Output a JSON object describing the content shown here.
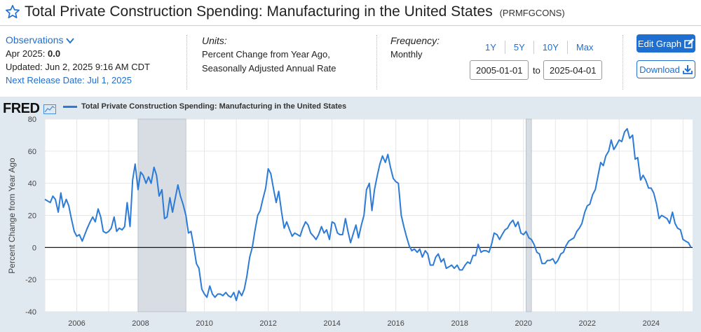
{
  "header": {
    "title": "Total Private Construction Spending: Manufacturing in the United States",
    "series_id": "(PRMFGCONS)"
  },
  "observations": {
    "link_label": "Observations",
    "date_label": "Apr 2025:",
    "value": "0.0",
    "updated": "Updated: Jun 2, 2025 9:16 AM CDT",
    "next_release": "Next Release Date: Jul 1, 2025"
  },
  "units": {
    "heading": "Units:",
    "line1": "Percent Change from Year Ago,",
    "line2": "Seasonally Adjusted Annual Rate"
  },
  "frequency": {
    "heading": "Frequency:",
    "value": "Monthly"
  },
  "range_buttons": [
    "1Y",
    "5Y",
    "10Y",
    "Max"
  ],
  "date_range": {
    "start": "2005-01-01",
    "to_label": "to",
    "end": "2025-04-01"
  },
  "actions": {
    "edit_graph": "Edit Graph",
    "download": "Download"
  },
  "logo": "FRED",
  "colors": {
    "accent": "#1f6fd1",
    "series": "#2c7bd6",
    "plot_bg": "#ffffff",
    "panel_bg": "#e1e9f0",
    "recession": "#d8dde3"
  },
  "chart_data": {
    "type": "line",
    "title": "Total Private Construction Spending: Manufacturing in the United States",
    "ylabel": "Percent Change from Year Ago",
    "xlabel": "",
    "ylim": [
      -40,
      80
    ],
    "xlim": [
      2005.0,
      2025.3
    ],
    "y_ticks": [
      80,
      60,
      40,
      20,
      0,
      -20,
      -40
    ],
    "x_ticks": [
      2006,
      2008,
      2010,
      2012,
      2014,
      2016,
      2018,
      2020,
      2022,
      2024
    ],
    "recessions": [
      [
        2007.92,
        2009.42
      ],
      [
        2020.08,
        2020.25
      ]
    ],
    "series": [
      {
        "name": "Total Private Construction Spending: Manufacturing in the United States",
        "points": [
          [
            2005.0,
            30
          ],
          [
            2005.17,
            28
          ],
          [
            2005.25,
            32
          ],
          [
            2005.33,
            30
          ],
          [
            2005.42,
            22
          ],
          [
            2005.5,
            34
          ],
          [
            2005.58,
            25
          ],
          [
            2005.67,
            30
          ],
          [
            2005.75,
            26
          ],
          [
            2005.83,
            18
          ],
          [
            2005.92,
            10
          ],
          [
            2006.0,
            7
          ],
          [
            2006.08,
            8
          ],
          [
            2006.17,
            4
          ],
          [
            2006.25,
            8
          ],
          [
            2006.33,
            12
          ],
          [
            2006.42,
            16
          ],
          [
            2006.5,
            19
          ],
          [
            2006.58,
            16
          ],
          [
            2006.67,
            24
          ],
          [
            2006.75,
            19
          ],
          [
            2006.83,
            10
          ],
          [
            2006.92,
            9
          ],
          [
            2007.0,
            10
          ],
          [
            2007.08,
            12
          ],
          [
            2007.17,
            19
          ],
          [
            2007.25,
            10
          ],
          [
            2007.33,
            12
          ],
          [
            2007.42,
            11
          ],
          [
            2007.5,
            13
          ],
          [
            2007.58,
            28
          ],
          [
            2007.67,
            13
          ],
          [
            2007.75,
            42
          ],
          [
            2007.83,
            52
          ],
          [
            2007.92,
            36
          ],
          [
            2008.0,
            47
          ],
          [
            2008.08,
            45
          ],
          [
            2008.17,
            40
          ],
          [
            2008.25,
            44
          ],
          [
            2008.33,
            40
          ],
          [
            2008.42,
            50
          ],
          [
            2008.5,
            45
          ],
          [
            2008.58,
            32
          ],
          [
            2008.67,
            36
          ],
          [
            2008.75,
            18
          ],
          [
            2008.83,
            19
          ],
          [
            2008.92,
            31
          ],
          [
            2009.0,
            22
          ],
          [
            2009.08,
            30
          ],
          [
            2009.17,
            39
          ],
          [
            2009.25,
            32
          ],
          [
            2009.33,
            27
          ],
          [
            2009.42,
            20
          ],
          [
            2009.5,
            9
          ],
          [
            2009.58,
            10
          ],
          [
            2009.67,
            0
          ],
          [
            2009.75,
            -10
          ],
          [
            2009.83,
            -13
          ],
          [
            2009.92,
            -26
          ],
          [
            2010.0,
            -29
          ],
          [
            2010.08,
            -31
          ],
          [
            2010.17,
            -24
          ],
          [
            2010.25,
            -29
          ],
          [
            2010.33,
            -31
          ],
          [
            2010.42,
            -29
          ],
          [
            2010.5,
            -29
          ],
          [
            2010.58,
            -30
          ],
          [
            2010.67,
            -28
          ],
          [
            2010.75,
            -30
          ],
          [
            2010.83,
            -31
          ],
          [
            2010.92,
            -28
          ],
          [
            2011.0,
            -33
          ],
          [
            2011.08,
            -27
          ],
          [
            2011.17,
            -30
          ],
          [
            2011.25,
            -26
          ],
          [
            2011.33,
            -18
          ],
          [
            2011.42,
            -6
          ],
          [
            2011.5,
            0
          ],
          [
            2011.58,
            10
          ],
          [
            2011.67,
            20
          ],
          [
            2011.75,
            23
          ],
          [
            2011.83,
            30
          ],
          [
            2011.92,
            37
          ],
          [
            2012.0,
            49
          ],
          [
            2012.08,
            46
          ],
          [
            2012.17,
            36
          ],
          [
            2012.25,
            28
          ],
          [
            2012.33,
            35
          ],
          [
            2012.42,
            22
          ],
          [
            2012.5,
            12
          ],
          [
            2012.58,
            16
          ],
          [
            2012.67,
            11
          ],
          [
            2012.75,
            7
          ],
          [
            2012.83,
            9
          ],
          [
            2012.92,
            8
          ],
          [
            2013.0,
            7
          ],
          [
            2013.08,
            12
          ],
          [
            2013.17,
            16
          ],
          [
            2013.25,
            14
          ],
          [
            2013.33,
            9
          ],
          [
            2013.42,
            7
          ],
          [
            2013.5,
            5
          ],
          [
            2013.58,
            8
          ],
          [
            2013.67,
            13
          ],
          [
            2013.75,
            9
          ],
          [
            2013.83,
            11
          ],
          [
            2013.92,
            5
          ],
          [
            2014.0,
            16
          ],
          [
            2014.08,
            15
          ],
          [
            2014.17,
            9
          ],
          [
            2014.25,
            8
          ],
          [
            2014.33,
            8
          ],
          [
            2014.42,
            18
          ],
          [
            2014.5,
            10
          ],
          [
            2014.58,
            3
          ],
          [
            2014.67,
            9
          ],
          [
            2014.75,
            14
          ],
          [
            2014.83,
            6
          ],
          [
            2014.92,
            14
          ],
          [
            2015.0,
            20
          ],
          [
            2015.08,
            36
          ],
          [
            2015.17,
            40
          ],
          [
            2015.25,
            23
          ],
          [
            2015.33,
            36
          ],
          [
            2015.42,
            45
          ],
          [
            2015.5,
            52
          ],
          [
            2015.58,
            57
          ],
          [
            2015.67,
            53
          ],
          [
            2015.75,
            58
          ],
          [
            2015.83,
            50
          ],
          [
            2015.92,
            43
          ],
          [
            2016.0,
            41
          ],
          [
            2016.08,
            40
          ],
          [
            2016.17,
            20
          ],
          [
            2016.25,
            13
          ],
          [
            2016.33,
            7
          ],
          [
            2016.42,
            1
          ],
          [
            2016.5,
            -2
          ],
          [
            2016.58,
            -1
          ],
          [
            2016.67,
            -3
          ],
          [
            2016.75,
            -1
          ],
          [
            2016.83,
            -6
          ],
          [
            2016.92,
            -2
          ],
          [
            2017.0,
            -4
          ],
          [
            2017.08,
            -11
          ],
          [
            2017.17,
            -11
          ],
          [
            2017.25,
            -6
          ],
          [
            2017.33,
            -4
          ],
          [
            2017.42,
            -9
          ],
          [
            2017.5,
            -7
          ],
          [
            2017.58,
            -13
          ],
          [
            2017.67,
            -12
          ],
          [
            2017.75,
            -11
          ],
          [
            2017.83,
            -13
          ],
          [
            2017.92,
            -11
          ],
          [
            2018.0,
            -14
          ],
          [
            2018.08,
            -14
          ],
          [
            2018.17,
            -11
          ],
          [
            2018.25,
            -9
          ],
          [
            2018.33,
            -10
          ],
          [
            2018.42,
            -5
          ],
          [
            2018.5,
            -5
          ],
          [
            2018.58,
            2
          ],
          [
            2018.67,
            -3
          ],
          [
            2018.75,
            -2
          ],
          [
            2018.83,
            -2
          ],
          [
            2018.92,
            -3
          ],
          [
            2019.0,
            2
          ],
          [
            2019.08,
            9
          ],
          [
            2019.17,
            8
          ],
          [
            2019.25,
            5
          ],
          [
            2019.33,
            8
          ],
          [
            2019.42,
            11
          ],
          [
            2019.5,
            12
          ],
          [
            2019.58,
            15
          ],
          [
            2019.67,
            17
          ],
          [
            2019.75,
            13
          ],
          [
            2019.83,
            16
          ],
          [
            2019.92,
            9
          ],
          [
            2020.0,
            8
          ],
          [
            2020.08,
            10
          ],
          [
            2020.17,
            6
          ],
          [
            2020.25,
            5
          ],
          [
            2020.33,
            2
          ],
          [
            2020.42,
            -3
          ],
          [
            2020.5,
            -4
          ],
          [
            2020.58,
            -10
          ],
          [
            2020.67,
            -10
          ],
          [
            2020.75,
            -8
          ],
          [
            2020.83,
            -8
          ],
          [
            2020.92,
            -7
          ],
          [
            2021.0,
            -10
          ],
          [
            2021.08,
            -8
          ],
          [
            2021.17,
            -4
          ],
          [
            2021.25,
            -3
          ],
          [
            2021.33,
            1
          ],
          [
            2021.42,
            4
          ],
          [
            2021.5,
            5
          ],
          [
            2021.58,
            6
          ],
          [
            2021.67,
            10
          ],
          [
            2021.75,
            12
          ],
          [
            2021.83,
            15
          ],
          [
            2021.92,
            22
          ],
          [
            2022.0,
            26
          ],
          [
            2022.08,
            27
          ],
          [
            2022.17,
            33
          ],
          [
            2022.25,
            36
          ],
          [
            2022.33,
            44
          ],
          [
            2022.42,
            53
          ],
          [
            2022.5,
            51
          ],
          [
            2022.58,
            57
          ],
          [
            2022.67,
            60
          ],
          [
            2022.75,
            67
          ],
          [
            2022.83,
            61
          ],
          [
            2022.92,
            64
          ],
          [
            2023.0,
            67
          ],
          [
            2023.08,
            66
          ],
          [
            2023.17,
            72
          ],
          [
            2023.25,
            74
          ],
          [
            2023.33,
            68
          ],
          [
            2023.42,
            70
          ],
          [
            2023.5,
            55
          ],
          [
            2023.58,
            56
          ],
          [
            2023.67,
            42
          ],
          [
            2023.75,
            45
          ],
          [
            2023.83,
            42
          ],
          [
            2023.92,
            37
          ],
          [
            2024.0,
            37
          ],
          [
            2024.08,
            34
          ],
          [
            2024.17,
            27
          ],
          [
            2024.25,
            18
          ],
          [
            2024.33,
            20
          ],
          [
            2024.42,
            19
          ],
          [
            2024.5,
            18
          ],
          [
            2024.58,
            15
          ],
          [
            2024.67,
            22
          ],
          [
            2024.75,
            15
          ],
          [
            2024.83,
            12
          ],
          [
            2024.92,
            11
          ],
          [
            2025.0,
            5
          ],
          [
            2025.08,
            4
          ],
          [
            2025.17,
            3
          ],
          [
            2025.25,
            0
          ]
        ]
      }
    ]
  }
}
